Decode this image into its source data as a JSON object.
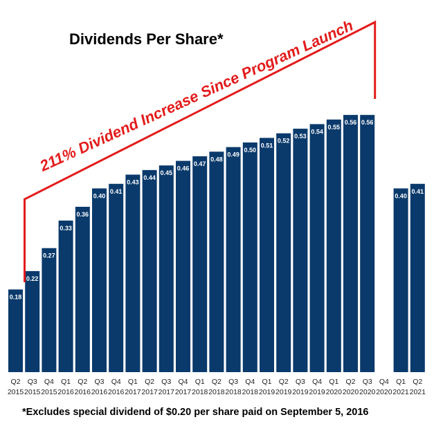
{
  "chart_data": {
    "type": "bar",
    "title": "Dividends Per Share*",
    "categories": [
      [
        "Q2",
        "2015"
      ],
      [
        "Q3",
        "2015"
      ],
      [
        "Q4",
        "2015"
      ],
      [
        "Q1",
        "2016"
      ],
      [
        "Q2",
        "2016"
      ],
      [
        "Q3",
        "2016"
      ],
      [
        "Q4",
        "2016"
      ],
      [
        "Q1",
        "2017"
      ],
      [
        "Q2",
        "2017"
      ],
      [
        "Q3",
        "2017"
      ],
      [
        "Q4",
        "2017"
      ],
      [
        "Q1",
        "2018"
      ],
      [
        "Q2",
        "2018"
      ],
      [
        "Q3",
        "2018"
      ],
      [
        "Q4",
        "2018"
      ],
      [
        "Q1",
        "2019"
      ],
      [
        "Q2",
        "2019"
      ],
      [
        "Q3",
        "2019"
      ],
      [
        "Q4",
        "2019"
      ],
      [
        "Q1",
        "2020"
      ],
      [
        "Q2",
        "2020"
      ],
      [
        "Q3",
        "2020"
      ],
      [
        "Q4",
        "2020"
      ],
      [
        "Q1",
        "2021"
      ],
      [
        "Q2",
        "2021"
      ]
    ],
    "values": [
      0.18,
      0.22,
      0.27,
      0.33,
      0.36,
      0.4,
      0.41,
      0.43,
      0.44,
      0.45,
      0.46,
      0.47,
      0.48,
      0.49,
      0.5,
      0.51,
      0.52,
      0.53,
      0.54,
      0.55,
      0.56,
      0.56,
      null,
      0.4,
      0.41
    ],
    "labels": [
      "0.18",
      "0.22",
      "0.27",
      "0.33",
      "0.36",
      "0.40",
      "0.41",
      "0.43",
      "0.44",
      "0.45",
      "0.46",
      "0.47",
      "0.48",
      "0.49",
      "0.50",
      "0.51",
      "0.52",
      "0.53",
      "0.54",
      "0.55",
      "0.56",
      "0.56",
      "",
      "0.40",
      "0.41"
    ],
    "annotation": "211% Dividend Increase Since Program Launch",
    "footnote": "*Excludes special dividend of $0.20 per share paid on September 5, 2016",
    "colors": {
      "bar": "#0a3a6b",
      "annotation": "#e31b1b"
    }
  }
}
